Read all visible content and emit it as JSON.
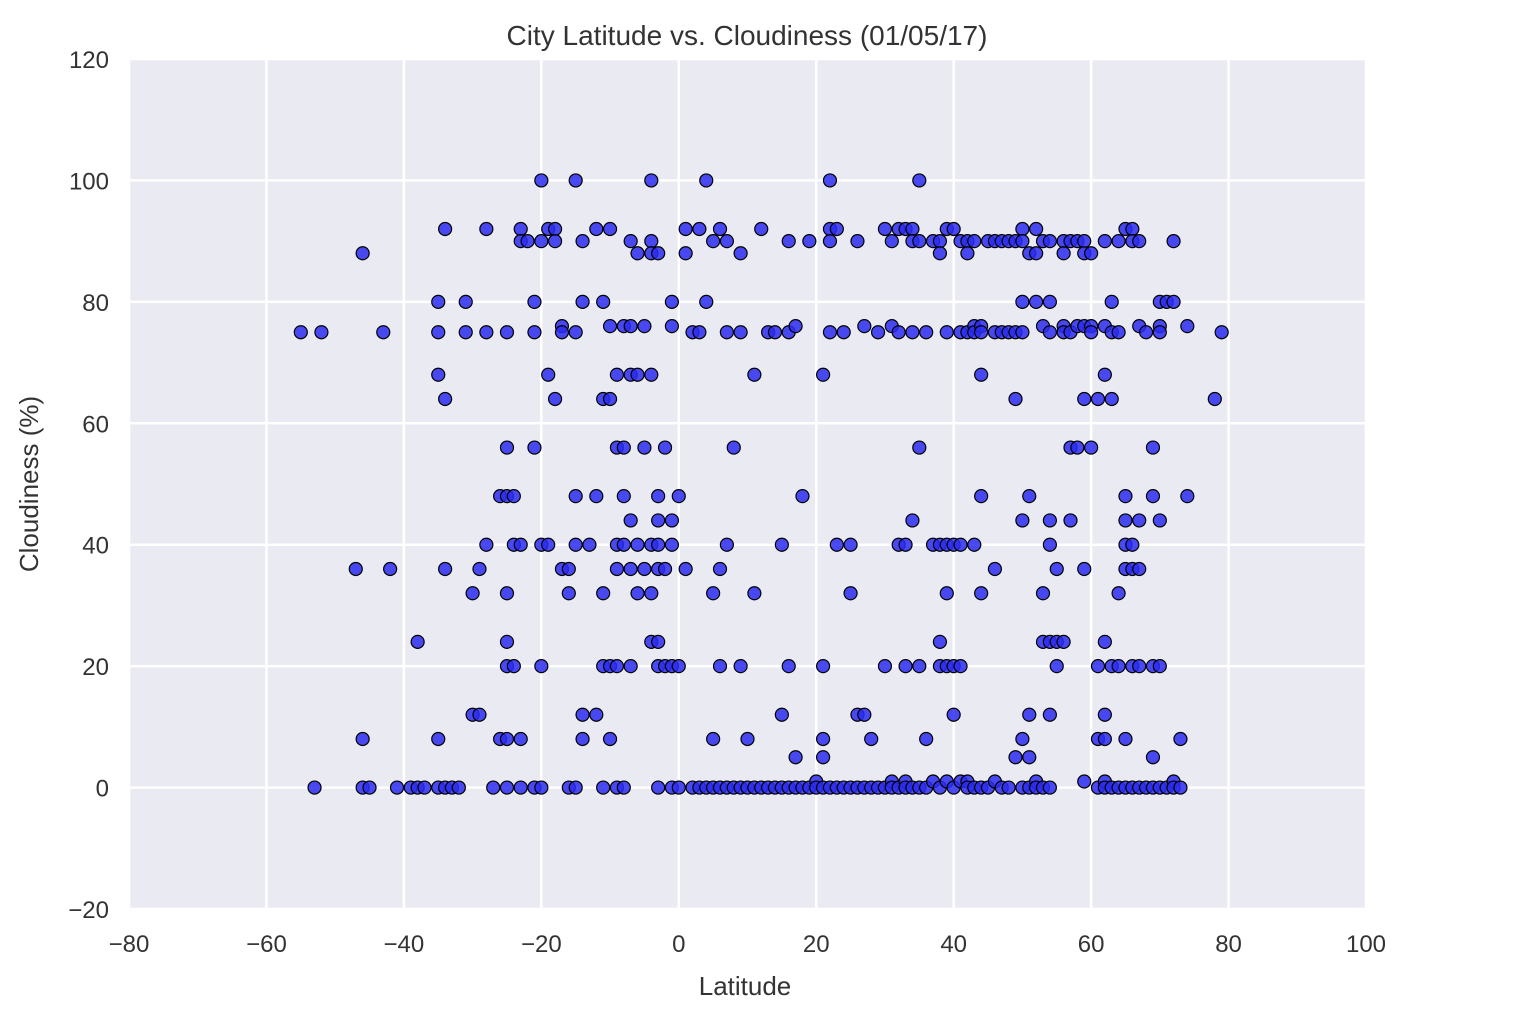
{
  "colors": {
    "plot_background": "#eaeaf2",
    "grid": "#ffffff",
    "marker_fill": "#2b2bf0",
    "marker_edge": "#000000",
    "text": "#333333"
  },
  "chart_data": {
    "type": "scatter",
    "title": "City Latitude vs. Cloudiness (01/05/17)",
    "xlabel": "Latitude",
    "ylabel": "Cloudiness (%)",
    "xlim": [
      -80,
      100
    ],
    "ylim": [
      -20,
      120
    ],
    "xticks": [
      -80,
      -60,
      -40,
      -20,
      0,
      20,
      40,
      60,
      80,
      100
    ],
    "yticks": [
      -20,
      0,
      20,
      40,
      60,
      80,
      100,
      120
    ],
    "xtick_labels": [
      "−80",
      "−60",
      "−40",
      "−20",
      "0",
      "20",
      "40",
      "60",
      "80",
      "100"
    ],
    "ytick_labels": [
      "−20",
      "0",
      "20",
      "40",
      "60",
      "80",
      "100",
      "120"
    ],
    "grid": true,
    "points": [
      [
        -55,
        75
      ],
      [
        -52,
        75
      ],
      [
        -53,
        0
      ],
      [
        -46,
        88
      ],
      [
        -47,
        36
      ],
      [
        -46,
        8
      ],
      [
        -46,
        0
      ],
      [
        -45,
        0
      ],
      [
        -43,
        75
      ],
      [
        -42,
        36
      ],
      [
        -41,
        0
      ],
      [
        -39,
        0
      ],
      [
        -38,
        0
      ],
      [
        -38,
        24
      ],
      [
        -37,
        0
      ],
      [
        -35,
        80
      ],
      [
        -35,
        75
      ],
      [
        -35,
        68
      ],
      [
        -35,
        8
      ],
      [
        -35,
        0
      ],
      [
        -34,
        64
      ],
      [
        -34,
        92
      ],
      [
        -34,
        36
      ],
      [
        -34,
        0
      ],
      [
        -33,
        0
      ],
      [
        -32,
        0
      ],
      [
        -31,
        80
      ],
      [
        -31,
        75
      ],
      [
        -30,
        32
      ],
      [
        -30,
        12
      ],
      [
        -29,
        36
      ],
      [
        -29,
        12
      ],
      [
        -28,
        92
      ],
      [
        -28,
        75
      ],
      [
        -28,
        40
      ],
      [
        -27,
        0
      ],
      [
        -26,
        48
      ],
      [
        -26,
        8
      ],
      [
        -25,
        0
      ],
      [
        -25,
        75
      ],
      [
        -25,
        56
      ],
      [
        -25,
        48
      ],
      [
        -25,
        32
      ],
      [
        -25,
        24
      ],
      [
        -25,
        20
      ],
      [
        -25,
        8
      ],
      [
        -24,
        40
      ],
      [
        -24,
        48
      ],
      [
        -24,
        20
      ],
      [
        -23,
        92
      ],
      [
        -23,
        90
      ],
      [
        -23,
        40
      ],
      [
        -23,
        8
      ],
      [
        -23,
        0
      ],
      [
        -22,
        90
      ],
      [
        -21,
        80
      ],
      [
        -21,
        75
      ],
      [
        -21,
        56
      ],
      [
        -21,
        0
      ],
      [
        -20,
        100
      ],
      [
        -20,
        90
      ],
      [
        -20,
        40
      ],
      [
        -20,
        20
      ],
      [
        -20,
        0
      ],
      [
        -19,
        92
      ],
      [
        -19,
        68
      ],
      [
        -19,
        40
      ],
      [
        -18,
        92
      ],
      [
        -18,
        64
      ],
      [
        -18,
        90
      ],
      [
        -17,
        76
      ],
      [
        -17,
        75
      ],
      [
        -17,
        36
      ],
      [
        -16,
        36
      ],
      [
        -16,
        32
      ],
      [
        -16,
        0
      ],
      [
        -15,
        100
      ],
      [
        -15,
        75
      ],
      [
        -15,
        48
      ],
      [
        -15,
        40
      ],
      [
        -15,
        0
      ],
      [
        -14,
        90
      ],
      [
        -14,
        80
      ],
      [
        -14,
        12
      ],
      [
        -14,
        8
      ],
      [
        -13,
        40
      ],
      [
        -12,
        92
      ],
      [
        -12,
        48
      ],
      [
        -12,
        12
      ],
      [
        -11,
        80
      ],
      [
        -11,
        64
      ],
      [
        -11,
        32
      ],
      [
        -11,
        20
      ],
      [
        -11,
        0
      ],
      [
        -10,
        92
      ],
      [
        -10,
        76
      ],
      [
        -10,
        64
      ],
      [
        -10,
        20
      ],
      [
        -10,
        8
      ],
      [
        -9,
        68
      ],
      [
        -9,
        56
      ],
      [
        -9,
        40
      ],
      [
        -9,
        36
      ],
      [
        -9,
        20
      ],
      [
        -9,
        0
      ],
      [
        -8,
        76
      ],
      [
        -8,
        56
      ],
      [
        -8,
        48
      ],
      [
        -8,
        40
      ],
      [
        -8,
        0
      ],
      [
        -7,
        90
      ],
      [
        -7,
        76
      ],
      [
        -7,
        68
      ],
      [
        -7,
        44
      ],
      [
        -7,
        36
      ],
      [
        -7,
        20
      ],
      [
        -6,
        88
      ],
      [
        -6,
        68
      ],
      [
        -6,
        40
      ],
      [
        -6,
        32
      ],
      [
        -5,
        76
      ],
      [
        -5,
        56
      ],
      [
        -5,
        36
      ],
      [
        -4,
        100
      ],
      [
        -4,
        90
      ],
      [
        -4,
        88
      ],
      [
        -4,
        68
      ],
      [
        -4,
        40
      ],
      [
        -4,
        32
      ],
      [
        -4,
        24
      ],
      [
        -3,
        88
      ],
      [
        -3,
        48
      ],
      [
        -3,
        44
      ],
      [
        -3,
        40
      ],
      [
        -3,
        36
      ],
      [
        -3,
        24
      ],
      [
        -3,
        20
      ],
      [
        -3,
        0
      ],
      [
        -2,
        56
      ],
      [
        -2,
        36
      ],
      [
        -2,
        20
      ],
      [
        -1,
        80
      ],
      [
        -1,
        76
      ],
      [
        -1,
        44
      ],
      [
        -1,
        40
      ],
      [
        -1,
        20
      ],
      [
        -1,
        0
      ],
      [
        0,
        48
      ],
      [
        0,
        20
      ],
      [
        0,
        0
      ],
      [
        1,
        92
      ],
      [
        1,
        88
      ],
      [
        1,
        36
      ],
      [
        2,
        75
      ],
      [
        2,
        0
      ],
      [
        3,
        92
      ],
      [
        3,
        75
      ],
      [
        3,
        0
      ],
      [
        4,
        100
      ],
      [
        4,
        80
      ],
      [
        4,
        0
      ],
      [
        5,
        90
      ],
      [
        5,
        32
      ],
      [
        5,
        8
      ],
      [
        5,
        0
      ],
      [
        6,
        92
      ],
      [
        6,
        36
      ],
      [
        6,
        20
      ],
      [
        6,
        0
      ],
      [
        7,
        90
      ],
      [
        7,
        75
      ],
      [
        7,
        40
      ],
      [
        7,
        0
      ],
      [
        8,
        56
      ],
      [
        8,
        0
      ],
      [
        9,
        88
      ],
      [
        9,
        75
      ],
      [
        9,
        20
      ],
      [
        9,
        0
      ],
      [
        10,
        8
      ],
      [
        10,
        0
      ],
      [
        11,
        68
      ],
      [
        11,
        32
      ],
      [
        11,
        0
      ],
      [
        12,
        92
      ],
      [
        12,
        0
      ],
      [
        13,
        75
      ],
      [
        13,
        0
      ],
      [
        14,
        75
      ],
      [
        14,
        0
      ],
      [
        15,
        40
      ],
      [
        15,
        12
      ],
      [
        15,
        0
      ],
      [
        16,
        90
      ],
      [
        16,
        75
      ],
      [
        16,
        20
      ],
      [
        16,
        0
      ],
      [
        17,
        76
      ],
      [
        17,
        5
      ],
      [
        17,
        0
      ],
      [
        18,
        48
      ],
      [
        18,
        0
      ],
      [
        19,
        90
      ],
      [
        19,
        0
      ],
      [
        20,
        1
      ],
      [
        20,
        0
      ],
      [
        21,
        68
      ],
      [
        21,
        20
      ],
      [
        21,
        8
      ],
      [
        21,
        5
      ],
      [
        21,
        0
      ],
      [
        22,
        100
      ],
      [
        22,
        92
      ],
      [
        22,
        90
      ],
      [
        22,
        75
      ],
      [
        22,
        0
      ],
      [
        23,
        92
      ],
      [
        23,
        40
      ],
      [
        23,
        0
      ],
      [
        24,
        75
      ],
      [
        24,
        0
      ],
      [
        25,
        40
      ],
      [
        25,
        32
      ],
      [
        25,
        0
      ],
      [
        26,
        90
      ],
      [
        26,
        12
      ],
      [
        26,
        0
      ],
      [
        27,
        76
      ],
      [
        27,
        12
      ],
      [
        27,
        0
      ],
      [
        28,
        8
      ],
      [
        28,
        0
      ],
      [
        29,
        75
      ],
      [
        29,
        0
      ],
      [
        30,
        92
      ],
      [
        30,
        20
      ],
      [
        30,
        0
      ],
      [
        31,
        76
      ],
      [
        31,
        90
      ],
      [
        31,
        1
      ],
      [
        31,
        0
      ],
      [
        32,
        92
      ],
      [
        32,
        75
      ],
      [
        32,
        40
      ],
      [
        32,
        0
      ],
      [
        33,
        92
      ],
      [
        33,
        40
      ],
      [
        33,
        20
      ],
      [
        33,
        1
      ],
      [
        33,
        0
      ],
      [
        34,
        92
      ],
      [
        34,
        90
      ],
      [
        34,
        75
      ],
      [
        34,
        44
      ],
      [
        34,
        0
      ],
      [
        35,
        100
      ],
      [
        35,
        90
      ],
      [
        35,
        56
      ],
      [
        35,
        20
      ],
      [
        35,
        0
      ],
      [
        36,
        75
      ],
      [
        36,
        8
      ],
      [
        36,
        0
      ],
      [
        37,
        90
      ],
      [
        37,
        40
      ],
      [
        37,
        1
      ],
      [
        38,
        90
      ],
      [
        38,
        88
      ],
      [
        38,
        40
      ],
      [
        38,
        24
      ],
      [
        38,
        20
      ],
      [
        38,
        0
      ],
      [
        39,
        92
      ],
      [
        39,
        75
      ],
      [
        39,
        40
      ],
      [
        39,
        32
      ],
      [
        39,
        20
      ],
      [
        39,
        1
      ],
      [
        40,
        92
      ],
      [
        40,
        40
      ],
      [
        40,
        20
      ],
      [
        40,
        12
      ],
      [
        40,
        0
      ],
      [
        41,
        90
      ],
      [
        41,
        75
      ],
      [
        41,
        40
      ],
      [
        41,
        20
      ],
      [
        41,
        1
      ],
      [
        42,
        90
      ],
      [
        42,
        88
      ],
      [
        42,
        75
      ],
      [
        42,
        1
      ],
      [
        42,
        0
      ],
      [
        43,
        90
      ],
      [
        43,
        76
      ],
      [
        43,
        75
      ],
      [
        43,
        40
      ],
      [
        43,
        0
      ],
      [
        44,
        76
      ],
      [
        44,
        75
      ],
      [
        44,
        68
      ],
      [
        44,
        48
      ],
      [
        44,
        32
      ],
      [
        44,
        0
      ],
      [
        45,
        90
      ],
      [
        45,
        0
      ],
      [
        46,
        90
      ],
      [
        46,
        75
      ],
      [
        46,
        36
      ],
      [
        46,
        1
      ],
      [
        47,
        90
      ],
      [
        47,
        75
      ],
      [
        47,
        0
      ],
      [
        48,
        90
      ],
      [
        48,
        75
      ],
      [
        48,
        0
      ],
      [
        49,
        90
      ],
      [
        49,
        75
      ],
      [
        49,
        64
      ],
      [
        49,
        5
      ],
      [
        50,
        92
      ],
      [
        50,
        90
      ],
      [
        50,
        80
      ],
      [
        50,
        75
      ],
      [
        50,
        44
      ],
      [
        50,
        8
      ],
      [
        50,
        0
      ],
      [
        51,
        88
      ],
      [
        51,
        48
      ],
      [
        51,
        12
      ],
      [
        51,
        5
      ],
      [
        51,
        0
      ],
      [
        52,
        92
      ],
      [
        52,
        88
      ],
      [
        52,
        80
      ],
      [
        52,
        1
      ],
      [
        52,
        0
      ],
      [
        53,
        90
      ],
      [
        53,
        76
      ],
      [
        53,
        32
      ],
      [
        53,
        24
      ],
      [
        53,
        0
      ],
      [
        54,
        90
      ],
      [
        54,
        80
      ],
      [
        54,
        75
      ],
      [
        54,
        44
      ],
      [
        54,
        40
      ],
      [
        54,
        24
      ],
      [
        54,
        12
      ],
      [
        54,
        0
      ],
      [
        55,
        36
      ],
      [
        55,
        24
      ],
      [
        55,
        20
      ],
      [
        56,
        90
      ],
      [
        56,
        76
      ],
      [
        56,
        75
      ],
      [
        56,
        88
      ],
      [
        56,
        24
      ],
      [
        57,
        90
      ],
      [
        57,
        75
      ],
      [
        57,
        56
      ],
      [
        57,
        44
      ],
      [
        58,
        90
      ],
      [
        58,
        76
      ],
      [
        58,
        56
      ],
      [
        59,
        90
      ],
      [
        59,
        88
      ],
      [
        59,
        76
      ],
      [
        59,
        64
      ],
      [
        59,
        36
      ],
      [
        59,
        1
      ],
      [
        60,
        88
      ],
      [
        60,
        76
      ],
      [
        60,
        75
      ],
      [
        60,
        56
      ],
      [
        61,
        64
      ],
      [
        61,
        20
      ],
      [
        61,
        8
      ],
      [
        61,
        0
      ],
      [
        62,
        90
      ],
      [
        62,
        76
      ],
      [
        62,
        68
      ],
      [
        62,
        24
      ],
      [
        62,
        12
      ],
      [
        62,
        8
      ],
      [
        62,
        1
      ],
      [
        62,
        0
      ],
      [
        63,
        80
      ],
      [
        63,
        75
      ],
      [
        63,
        64
      ],
      [
        63,
        20
      ],
      [
        63,
        0
      ],
      [
        64,
        90
      ],
      [
        64,
        75
      ],
      [
        64,
        32
      ],
      [
        64,
        20
      ],
      [
        64,
        0
      ],
      [
        65,
        92
      ],
      [
        65,
        48
      ],
      [
        65,
        44
      ],
      [
        65,
        40
      ],
      [
        65,
        36
      ],
      [
        65,
        8
      ],
      [
        65,
        0
      ],
      [
        66,
        92
      ],
      [
        66,
        90
      ],
      [
        66,
        40
      ],
      [
        66,
        36
      ],
      [
        66,
        20
      ],
      [
        66,
        0
      ],
      [
        67,
        90
      ],
      [
        67,
        76
      ],
      [
        67,
        44
      ],
      [
        67,
        36
      ],
      [
        67,
        20
      ],
      [
        67,
        0
      ],
      [
        68,
        75
      ],
      [
        68,
        0
      ],
      [
        69,
        56
      ],
      [
        69,
        48
      ],
      [
        69,
        20
      ],
      [
        69,
        5
      ],
      [
        69,
        0
      ],
      [
        70,
        80
      ],
      [
        70,
        76
      ],
      [
        70,
        75
      ],
      [
        70,
        44
      ],
      [
        70,
        20
      ],
      [
        70,
        0
      ],
      [
        71,
        80
      ],
      [
        71,
        0
      ],
      [
        72,
        90
      ],
      [
        72,
        80
      ],
      [
        72,
        1
      ],
      [
        72,
        0
      ],
      [
        73,
        8
      ],
      [
        73,
        0
      ],
      [
        74,
        48
      ],
      [
        74,
        76
      ],
      [
        78,
        64
      ],
      [
        79,
        75
      ]
    ]
  }
}
